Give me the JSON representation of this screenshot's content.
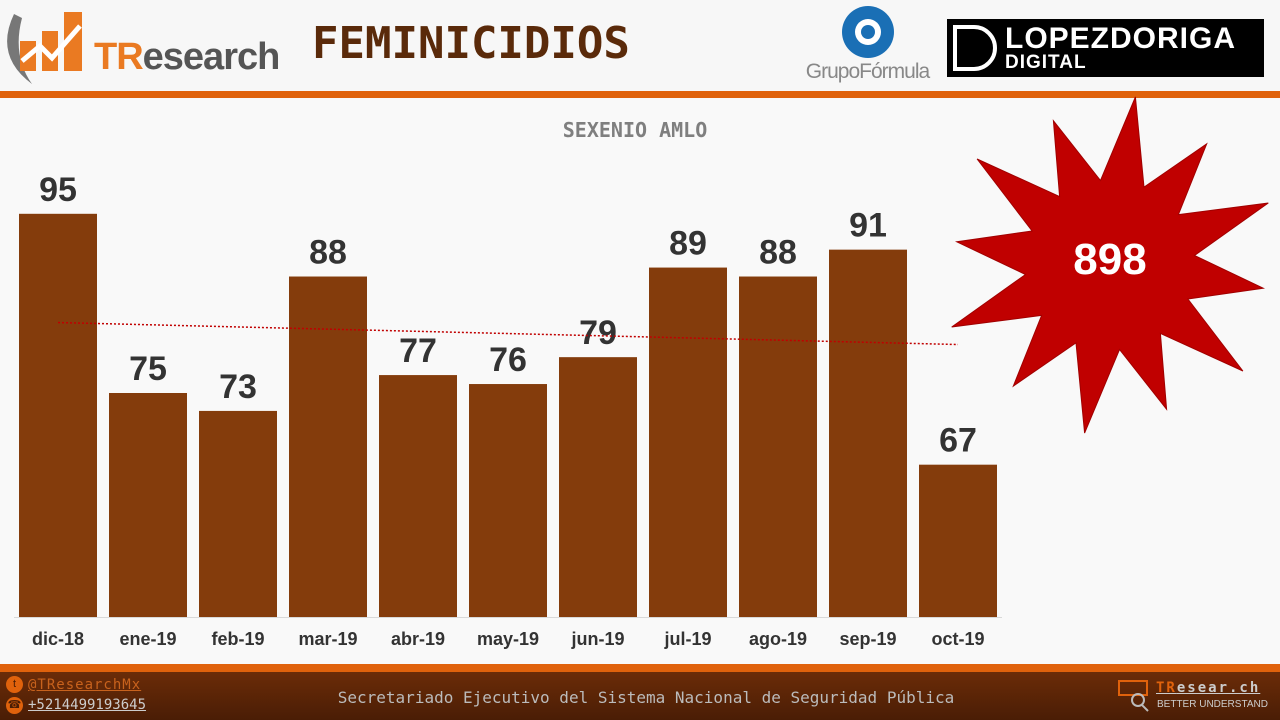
{
  "header": {
    "logo_t": "TR",
    "logo_rest": "esearch",
    "title": "FEMINICIDIOS",
    "grupo_formula": "GrupoFórmula",
    "lopezdoriga_line1": "LOPEZDORIGA",
    "lopezdoriga_line2": "DIGITAL"
  },
  "total": "898",
  "footer": {
    "twitter": "@TResearchMx",
    "phone": "+5214499193645",
    "source": "Secretariado Ejecutivo del Sistema Nacional de Seguridad Pública",
    "brand_t": "TR",
    "brand_rest": "esear.ch",
    "tagline": "BETTER UNDERSTAND"
  },
  "colors": {
    "bar": "#843c0c",
    "accent": "#e0620c",
    "trend": "#c00000",
    "burst": "#c00000"
  },
  "chart_data": {
    "type": "bar",
    "title": "SEXENIO AMLO",
    "categories": [
      "dic-18",
      "ene-19",
      "feb-19",
      "mar-19",
      "abr-19",
      "may-19",
      "jun-19",
      "jul-19",
      "ago-19",
      "sep-19",
      "oct-19"
    ],
    "values": [
      95,
      75,
      73,
      88,
      77,
      76,
      79,
      89,
      88,
      91,
      67
    ],
    "ylim": [
      50,
      100
    ],
    "trendline": "linear",
    "grid": false,
    "data_labels": true
  }
}
